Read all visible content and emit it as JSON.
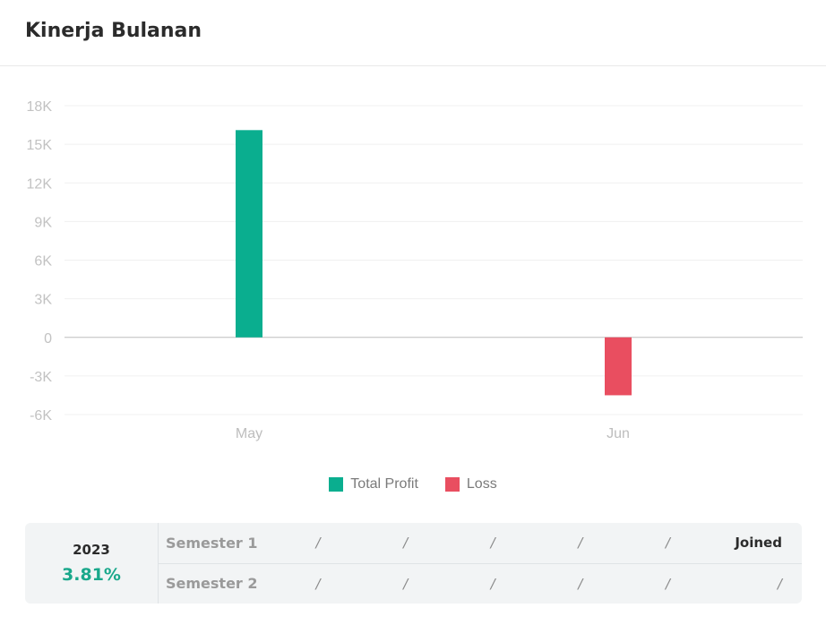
{
  "title": "Kinerja Bulanan",
  "colors": {
    "profit": "#0aae8f",
    "loss": "#e94e60"
  },
  "chart_data": {
    "type": "bar",
    "categories": [
      "May",
      "Jun"
    ],
    "series": [
      {
        "name": "Total Profit",
        "values": [
          16100,
          0
        ],
        "color": "#0aae8f"
      },
      {
        "name": "Loss",
        "values": [
          0,
          -4500
        ],
        "color": "#e94e60"
      }
    ],
    "ylim": [
      -6000,
      18000
    ],
    "yticks": [
      18000,
      15000,
      12000,
      9000,
      6000,
      3000,
      0,
      -3000,
      -6000
    ],
    "ytick_labels": [
      "18K",
      "15K",
      "12K",
      "9K",
      "6K",
      "3K",
      "0",
      "-3K",
      "-6K"
    ],
    "grid": true,
    "legend": "bottom"
  },
  "legend": [
    {
      "label": "Total Profit",
      "color": "#0aae8f"
    },
    {
      "label": "Loss",
      "color": "#e94e60"
    }
  ],
  "summary": {
    "year": "2023",
    "percent": "3.81%",
    "semesters": [
      {
        "name": "Semester 1",
        "cells": [
          "/",
          "/",
          "/",
          "/",
          "/",
          "Joined"
        ]
      },
      {
        "name": "Semester 2",
        "cells": [
          "/",
          "/",
          "/",
          "/",
          "/",
          "/"
        ]
      }
    ]
  }
}
